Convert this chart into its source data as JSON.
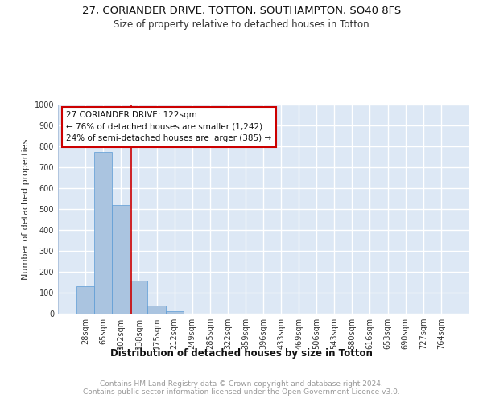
{
  "title1": "27, CORIANDER DRIVE, TOTTON, SOUTHAMPTON, SO40 8FS",
  "title2": "Size of property relative to detached houses in Totton",
  "xlabel": "Distribution of detached houses by size in Totton",
  "ylabel": "Number of detached properties",
  "categories": [
    "28sqm",
    "65sqm",
    "102sqm",
    "138sqm",
    "175sqm",
    "212sqm",
    "249sqm",
    "285sqm",
    "322sqm",
    "359sqm",
    "396sqm",
    "433sqm",
    "469sqm",
    "506sqm",
    "543sqm",
    "580sqm",
    "616sqm",
    "653sqm",
    "690sqm",
    "727sqm",
    "764sqm"
  ],
  "values": [
    130,
    775,
    520,
    158,
    38,
    13,
    0,
    0,
    0,
    0,
    0,
    0,
    0,
    0,
    0,
    0,
    0,
    0,
    0,
    0,
    0
  ],
  "bar_color": "#aac4e0",
  "bar_edge_color": "#5b9bd5",
  "background_color": "#dde8f5",
  "grid_color": "#ffffff",
  "property_line_x": 2.56,
  "annotation_text": "27 CORIANDER DRIVE: 122sqm\n← 76% of detached houses are smaller (1,242)\n24% of semi-detached houses are larger (385) →",
  "annotation_box_color": "#ffffff",
  "annotation_box_edge_color": "#cc0000",
  "property_line_color": "#cc0000",
  "ylim": [
    0,
    1000
  ],
  "yticks": [
    0,
    100,
    200,
    300,
    400,
    500,
    600,
    700,
    800,
    900,
    1000
  ],
  "footnote": "Contains HM Land Registry data © Crown copyright and database right 2024.\nContains public sector information licensed under the Open Government Licence v3.0.",
  "title1_fontsize": 9.5,
  "title2_fontsize": 8.5,
  "xlabel_fontsize": 8.5,
  "ylabel_fontsize": 8,
  "tick_fontsize": 7,
  "annotation_fontsize": 7.5,
  "footnote_fontsize": 6.5
}
